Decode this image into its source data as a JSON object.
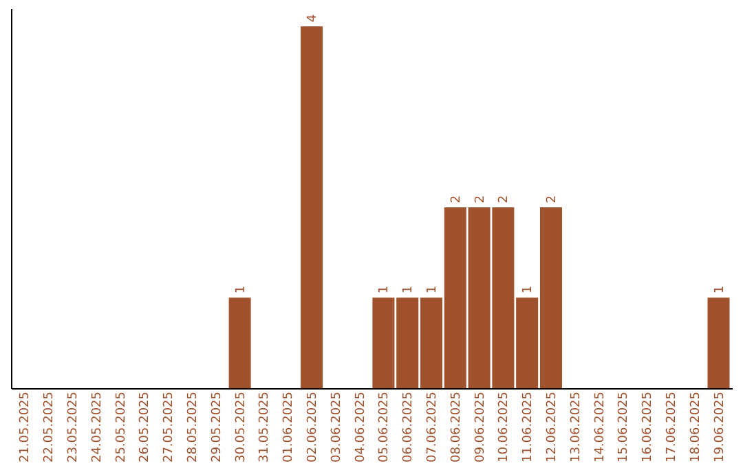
{
  "chart_data": {
    "type": "bar",
    "categories": [
      "21.05.2025",
      "22.05.2025",
      "23.05.2025",
      "24.05.2025",
      "25.05.2025",
      "26.05.2025",
      "27.05.2025",
      "28.05.2025",
      "29.05.2025",
      "30.05.2025",
      "31.05.2025",
      "01.06.2025",
      "02.06.2025",
      "03.06.2025",
      "04.06.2025",
      "05.06.2025",
      "06.06.2025",
      "07.06.2025",
      "08.06.2025",
      "09.06.2025",
      "10.06.2025",
      "11.06.2025",
      "12.06.2025",
      "13.06.2025",
      "14.06.2025",
      "15.06.2025",
      "16.06.2025",
      "17.06.2025",
      "18.06.2025",
      "19.06.2025"
    ],
    "values": [
      0,
      0,
      0,
      0,
      0,
      0,
      0,
      0,
      0,
      1,
      0,
      0,
      4,
      0,
      0,
      1,
      1,
      1,
      2,
      2,
      2,
      1,
      2,
      0,
      0,
      0,
      0,
      0,
      0,
      1
    ],
    "value_labels": [
      null,
      null,
      null,
      null,
      null,
      null,
      null,
      null,
      null,
      "1",
      null,
      null,
      "4",
      null,
      null,
      "1",
      "1",
      "1",
      "2",
      "2",
      "2",
      "1",
      "2",
      null,
      null,
      null,
      null,
      null,
      null,
      "1"
    ],
    "color": "#a0522d",
    "ylim": [
      0,
      4.2
    ],
    "tick_labels": "x",
    "grid": false
  }
}
